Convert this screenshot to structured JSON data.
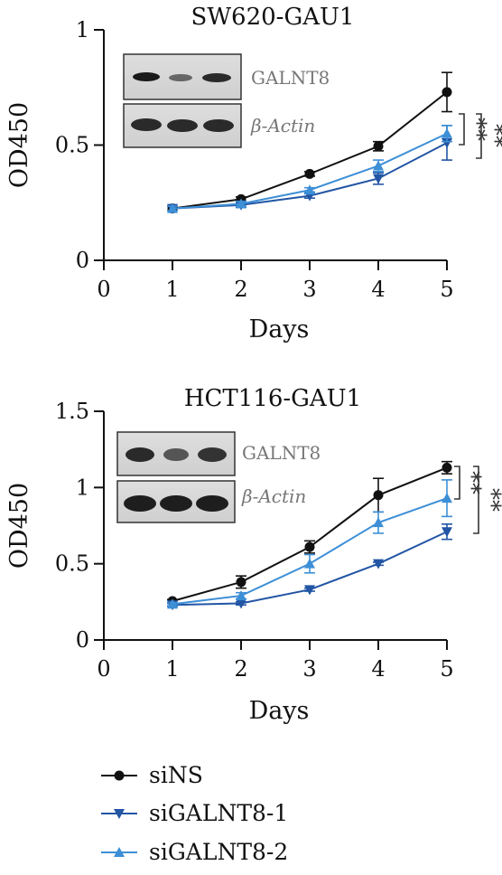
{
  "chart_data": [
    {
      "type": "line",
      "title": "SW620-GAU1",
      "xlabel": "Days",
      "ylabel": "OD450",
      "xlim": [
        0,
        5
      ],
      "ylim": [
        0,
        1
      ],
      "xticks": [
        "0",
        "1",
        "2",
        "3",
        "4",
        "5"
      ],
      "yticks": [
        "0",
        "0.5",
        "1"
      ],
      "x": [
        1,
        2,
        3,
        4,
        5
      ],
      "series": [
        {
          "name": "siNS",
          "values": [
            0.225,
            0.265,
            0.375,
            0.495,
            0.73
          ],
          "errors": [
            0.01,
            0.01,
            0.01,
            0.02,
            0.085
          ],
          "color": "#111111",
          "marker": "circle"
        },
        {
          "name": "siGALNT8-1",
          "values": [
            0.225,
            0.24,
            0.28,
            0.355,
            0.51
          ],
          "errors": [
            0.01,
            0.01,
            0.01,
            0.025,
            0.075
          ],
          "color": "#2255a4",
          "marker": "triangle-down"
        },
        {
          "name": "siGALNT8-2",
          "values": [
            0.225,
            0.245,
            0.305,
            0.41,
            0.55
          ],
          "errors": [
            0.01,
            0.01,
            0.01,
            0.025,
            0.035
          ],
          "color": "#3d8fd6",
          "marker": "triangle-up"
        }
      ],
      "blot_labels": [
        "GALNT8",
        "β-Actin"
      ],
      "significance": [
        "**",
        "**"
      ]
    },
    {
      "type": "line",
      "title": "HCT116-GAU1",
      "xlabel": "Days",
      "ylabel": "OD450",
      "xlim": [
        0,
        5
      ],
      "ylim": [
        0,
        1.5
      ],
      "xticks": [
        "0",
        "1",
        "2",
        "3",
        "4",
        "5"
      ],
      "yticks": [
        "0",
        "0.5",
        "1",
        "1.5"
      ],
      "x": [
        1,
        2,
        3,
        4,
        5
      ],
      "series": [
        {
          "name": "siNS",
          "values": [
            0.255,
            0.38,
            0.61,
            0.95,
            1.13
          ],
          "errors": [
            0.01,
            0.04,
            0.04,
            0.11,
            0.04
          ],
          "color": "#111111",
          "marker": "circle"
        },
        {
          "name": "siGALNT8-1",
          "values": [
            0.23,
            0.24,
            0.33,
            0.5,
            0.71
          ],
          "errors": [
            0.01,
            0.01,
            0.01,
            0.01,
            0.05
          ],
          "color": "#2255a4",
          "marker": "triangle-down"
        },
        {
          "name": "siGALNT8-2",
          "values": [
            0.235,
            0.29,
            0.5,
            0.77,
            0.93
          ],
          "errors": [
            0.01,
            0.02,
            0.06,
            0.07,
            0.12
          ],
          "color": "#3d8fd6",
          "marker": "triangle-up"
        }
      ],
      "blot_labels": [
        "GALNT8",
        "β-Actin"
      ],
      "significance": [
        "**",
        "**"
      ]
    }
  ],
  "legend": [
    {
      "label": "siNS",
      "color": "#111111",
      "marker": "circle"
    },
    {
      "label": "siGALNT8-1",
      "color": "#2255a4",
      "marker": "triangle-down"
    },
    {
      "label": "siGALNT8-2",
      "color": "#3d8fd6",
      "marker": "triangle-up"
    }
  ]
}
